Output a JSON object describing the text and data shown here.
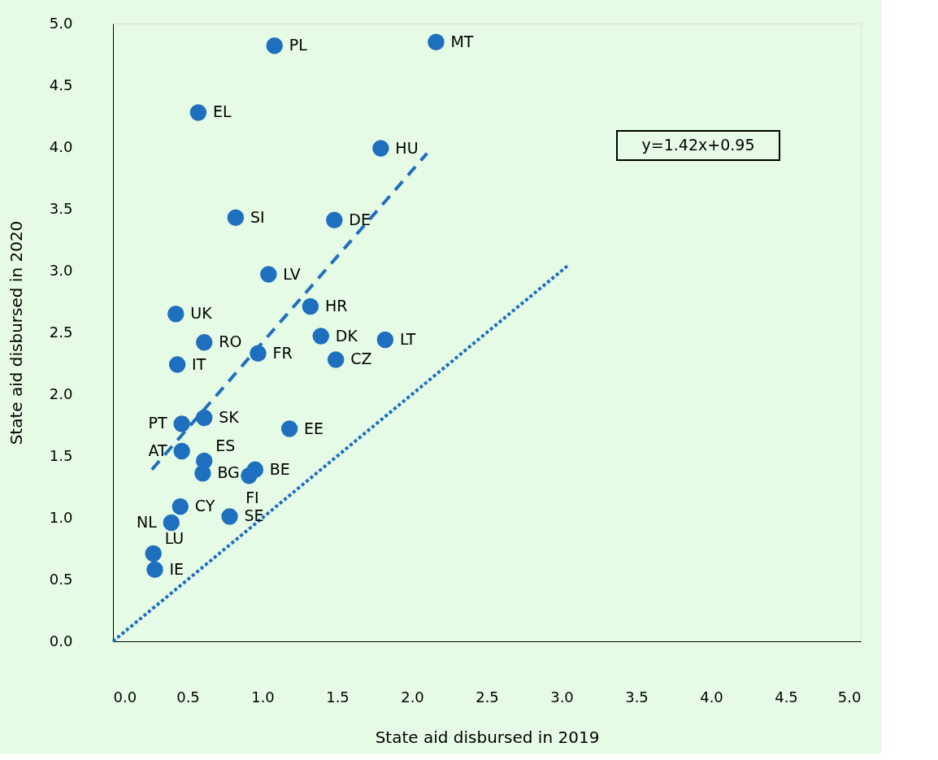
{
  "chart_data": {
    "type": "scatter",
    "xlabel": "State aid disbursed in 2019",
    "ylabel": "State aid disbursed in 2020",
    "xlim": [
      0,
      5
    ],
    "ylim": [
      0,
      5
    ],
    "xticks": [
      {
        "value": 0,
        "label": "0.0"
      },
      {
        "value": 0.5,
        "label": "0.5"
      },
      {
        "value": 1,
        "label": "1.0"
      },
      {
        "value": 1.5,
        "label": "1.5"
      },
      {
        "value": 2,
        "label": "2.0"
      },
      {
        "value": 2.5,
        "label": "2.5"
      },
      {
        "value": 3,
        "label": "3.0"
      },
      {
        "value": 3.5,
        "label": "3.5"
      },
      {
        "value": 4,
        "label": "4.0"
      },
      {
        "value": 4.5,
        "label": "4.5"
      },
      {
        "value": 5,
        "label": "5.0"
      }
    ],
    "yticks": [
      {
        "value": 0,
        "label": "0.0"
      },
      {
        "value": 0.5,
        "label": "0.5"
      },
      {
        "value": 1,
        "label": "1.0"
      },
      {
        "value": 1.5,
        "label": "1.5"
      },
      {
        "value": 2,
        "label": "2.0"
      },
      {
        "value": 2.5,
        "label": "2.5"
      },
      {
        "value": 3,
        "label": "3.0"
      },
      {
        "value": 3.5,
        "label": "3.5"
      },
      {
        "value": 4,
        "label": "4.0"
      },
      {
        "value": 4.5,
        "label": "4.5"
      },
      {
        "value": 5,
        "label": "5.0"
      }
    ],
    "grid": false,
    "series": [
      {
        "marker": "circle",
        "color": "#1f6fbf",
        "x": [
          1.08,
          2.16,
          0.57,
          1.79,
          0.82,
          1.48,
          1.04,
          1.32,
          0.42,
          0.61,
          1.39,
          1.82,
          0.97,
          1.49,
          0.43,
          0.61,
          0.46,
          1.18,
          0.46,
          0.61,
          0.6,
          0.95,
          0.91,
          0.45,
          0.39,
          0.78,
          0.27,
          0.28
        ],
        "values": [
          4.82,
          4.85,
          4.28,
          3.99,
          3.43,
          3.41,
          2.97,
          2.71,
          2.65,
          2.42,
          2.47,
          2.44,
          2.33,
          2.28,
          2.24,
          1.81,
          1.76,
          1.72,
          1.54,
          1.46,
          1.36,
          1.39,
          1.34,
          1.09,
          0.96,
          1.01,
          0.71,
          0.58
        ]
      },
      {
        "type": "line",
        "color": "#1f6fbf",
        "line_style": "dashed",
        "x": [
          0.26,
          2.1
        ],
        "values": [
          1.39,
          3.95
        ]
      },
      {
        "type": "line",
        "color": "#1f6fbf",
        "line_style": "dotted",
        "x": [
          0,
          3.04
        ],
        "values": [
          0,
          3.04
        ]
      }
    ],
    "annotations": [
      {
        "text": "PL",
        "x": 1.08,
        "y": 4.82
      },
      {
        "text": "MT",
        "x": 2.16,
        "y": 4.85
      },
      {
        "text": "EL",
        "x": 0.57,
        "y": 4.28
      },
      {
        "text": "HU",
        "x": 1.79,
        "y": 3.99
      },
      {
        "text": "SI",
        "x": 0.82,
        "y": 3.43
      },
      {
        "text": "DE",
        "x": 1.48,
        "y": 3.41
      },
      {
        "text": "LV",
        "x": 1.04,
        "y": 2.97
      },
      {
        "text": "HR",
        "x": 1.32,
        "y": 2.71
      },
      {
        "text": "UK",
        "x": 0.42,
        "y": 2.65
      },
      {
        "text": "RO",
        "x": 0.61,
        "y": 2.42
      },
      {
        "text": "DK",
        "x": 1.39,
        "y": 2.47
      },
      {
        "text": "LT",
        "x": 1.82,
        "y": 2.44
      },
      {
        "text": "FR",
        "x": 0.97,
        "y": 2.33
      },
      {
        "text": "CZ",
        "x": 1.49,
        "y": 2.28
      },
      {
        "text": "IT",
        "x": 0.43,
        "y": 2.24
      },
      {
        "text": "SK",
        "x": 0.61,
        "y": 1.81
      },
      {
        "text": "PT",
        "x": 0.46,
        "y": 1.76
      },
      {
        "text": "EE",
        "x": 1.18,
        "y": 1.72
      },
      {
        "text": "AT",
        "x": 0.46,
        "y": 1.54
      },
      {
        "text": "ES",
        "x": 0.61,
        "y": 1.46
      },
      {
        "text": "BG",
        "x": 0.6,
        "y": 1.36
      },
      {
        "text": "BE",
        "x": 0.95,
        "y": 1.39
      },
      {
        "text": "FI",
        "x": 0.91,
        "y": 1.34
      },
      {
        "text": "CY",
        "x": 0.45,
        "y": 1.09
      },
      {
        "text": "NL",
        "x": 0.39,
        "y": 0.96
      },
      {
        "text": "SE",
        "x": 0.78,
        "y": 1.01
      },
      {
        "text": "LU",
        "x": 0.27,
        "y": 0.71
      },
      {
        "text": "IE",
        "x": 0.28,
        "y": 0.58
      },
      "y=1.42x+0.95"
    ]
  }
}
